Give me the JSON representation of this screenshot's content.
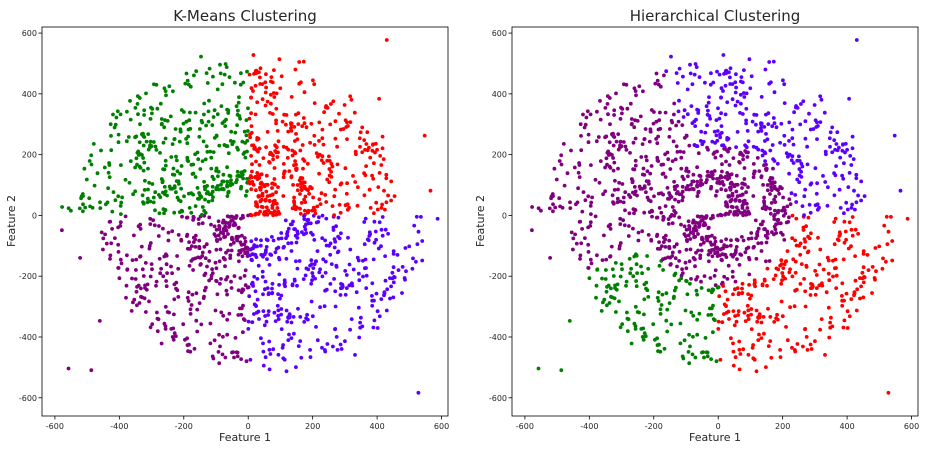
{
  "chart_data": [
    {
      "type": "scatter",
      "title": "K-Means Clustering",
      "xlabel": "Feature 1",
      "ylabel": "Feature 2",
      "xlim": [
        -640,
        620
      ],
      "ylim": [
        -660,
        620
      ],
      "xticks": [
        -600,
        -400,
        -200,
        0,
        200,
        400,
        600
      ],
      "yticks": [
        -600,
        -400,
        -200,
        0,
        200,
        400,
        600
      ],
      "grid": false,
      "colors": [
        "#008000",
        "#ff0000",
        "#5b00ff",
        "#800080"
      ],
      "cluster_regions": [
        {
          "name": "green",
          "color": "#008000",
          "angle_deg": [
            90,
            180
          ]
        },
        {
          "name": "red",
          "color": "#ff0000",
          "angle_deg": [
            0,
            90
          ]
        },
        {
          "name": "blue",
          "color": "#5b00ff",
          "angle_deg": [
            270,
            360
          ]
        },
        {
          "name": "purple",
          "color": "#800080",
          "angle_deg": [
            180,
            270
          ]
        }
      ]
    },
    {
      "type": "scatter",
      "title": "Hierarchical Clustering",
      "xlabel": "Feature 1",
      "ylabel": "Feature 2",
      "xlim": [
        -640,
        620
      ],
      "ylim": [
        -660,
        620
      ],
      "xticks": [
        -600,
        -400,
        -200,
        0,
        200,
        400,
        600
      ],
      "yticks": [
        -600,
        -400,
        -200,
        0,
        200,
        400,
        600
      ],
      "grid": false,
      "colors": [
        "#800080",
        "#5b00ff",
        "#ff0000",
        "#008000"
      ],
      "cluster_regions": [
        {
          "name": "purple",
          "color": "#800080",
          "description": "inner spiral arms and upper-left outer arm"
        },
        {
          "name": "blue",
          "color": "#5b00ff",
          "description": "upper-right arm"
        },
        {
          "name": "red",
          "color": "#ff0000",
          "description": "lower-right arm"
        },
        {
          "name": "green",
          "color": "#008000",
          "description": "lower-left arm"
        }
      ]
    }
  ]
}
